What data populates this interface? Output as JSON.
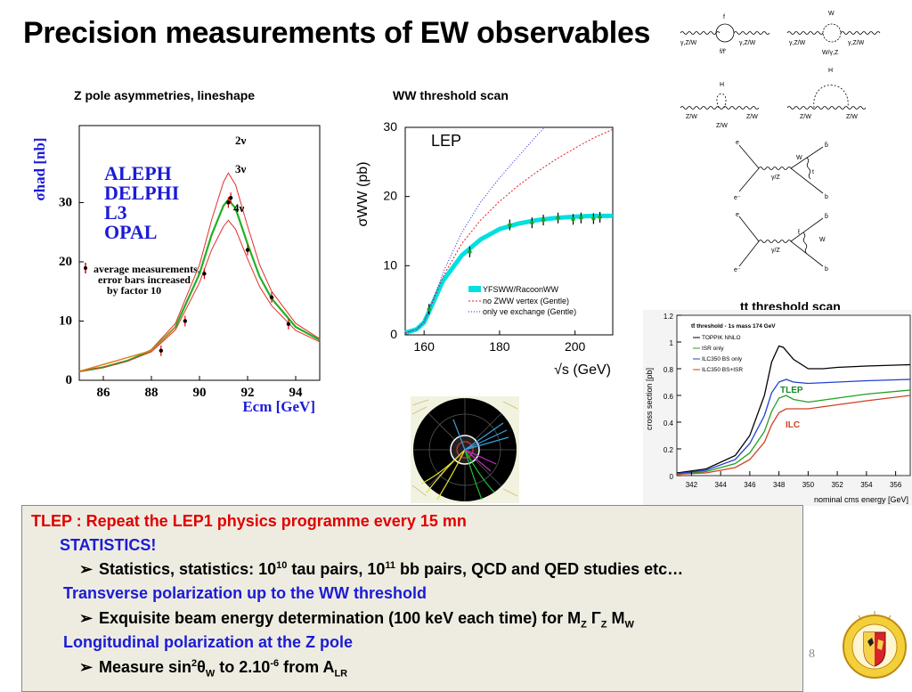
{
  "slide": {
    "title": "Precision measurements of EW observables",
    "page_number": "8"
  },
  "captions": {
    "zpole": "Z pole asymmetries, lineshape",
    "ww": "WW threshold scan",
    "tt": "tt threshold scan"
  },
  "zpole_plot": {
    "ylabel": "σhad [nb]",
    "xlabel": "Ecm [GeV]",
    "experiments": [
      "ALEPH",
      "DELPHI",
      "L3",
      "OPAL"
    ],
    "legend_lines": [
      "average measurements,",
      "error bars increased",
      "by factor 10"
    ],
    "curve_labels": [
      "2ν",
      "3ν",
      "4ν"
    ],
    "x_ticks": [
      "86",
      "88",
      "90",
      "92",
      "94"
    ],
    "y_ticks": [
      "0",
      "10",
      "20",
      "30"
    ]
  },
  "ww_plot": {
    "title": "LEP",
    "ylabel": "σWW (pb)",
    "xlabel": "√s (GeV)",
    "legend": [
      "YFSWW/RacoonWW",
      "no ZWW vertex (Gentle)",
      "only νe exchange (Gentle)"
    ],
    "x_ticks": [
      "160",
      "180",
      "200"
    ],
    "y_ticks": [
      "0",
      "10",
      "20",
      "30"
    ]
  },
  "tt_plot": {
    "header": "tt̄ threshold - 1s mass 174 GeV",
    "legend": [
      "TOPPIK NNLO",
      "ISR only",
      "ILC350 BS only",
      "ILC350 BS+ISR"
    ],
    "ylabel": "cross section [pb]",
    "xlabel": "nominal cms energy [GeV]",
    "labels": {
      "tlep": "TLEP",
      "ilc": "ILC"
    },
    "x_ticks": [
      "342",
      "344",
      "346",
      "348",
      "350",
      "352",
      "354",
      "356"
    ],
    "y_ticks": [
      "0",
      "0.2",
      "0.4",
      "0.6",
      "0.8",
      "1",
      "1.2"
    ],
    "colors": {
      "toppik": "#000000",
      "isr": "#22a022",
      "bs": "#2040d0",
      "bsisr": "#d04020"
    }
  },
  "diagrams": {
    "loop1": {
      "left": "γ,Z/W",
      "right": "γ,Z/W",
      "top": "f",
      "bottom": "f/f'"
    },
    "loop2": {
      "left": "γ,Z/W",
      "right": "γ,Z/W",
      "top": "W",
      "bottom": "W/γ,Z"
    },
    "higgs1": {
      "left": "Z/W",
      "right": "Z/W",
      "top": "H",
      "bottom": "Z/W"
    },
    "higgs2": {
      "left": "Z/W",
      "right": "Z/W",
      "top": "H"
    },
    "prod1": {
      "e1": "e",
      "e2": "e⁻",
      "boson": "γ/Z",
      "w": "W",
      "t": "t",
      "b1": "b̄",
      "b2": "b"
    },
    "prod2": {
      "e1": "e",
      "e2": "e⁻",
      "boson": "γ/Z",
      "w": "W",
      "t": "t̄",
      "b1": "b̄",
      "b2": "b"
    }
  },
  "panel": {
    "line1": "TLEP : Repeat the LEP1 physics programme every 15 mn",
    "line2": "STATISTICS!",
    "line3": {
      "a": "Statistics, statistics: 10",
      "a_sup": "10",
      "b": " tau pairs, 10",
      "b_sup": "11",
      "c": " bb pairs, QCD and QED studies etc…"
    },
    "line4": "Transverse polarization up to the WW threshold",
    "line5": {
      "a": "Exquisite beam energy determination (100 keV each time)  for M",
      "sub1": "Z",
      "g": " Γ",
      "sub2": "Z",
      "m": "  M",
      "sub3": "W"
    },
    "line6": "Longitudinal polarization at the Z pole",
    "line7": {
      "a": "Measure sin",
      "sup1": "2",
      "theta": "θ",
      "sub1": "W",
      "b": " to 2.10",
      "sup2": "-6",
      "c": " from A",
      "sub2": "LR"
    }
  },
  "chart_data": [
    {
      "type": "line",
      "title": "",
      "xlabel": "Ecm [GeV]",
      "ylabel": "σhad [nb]",
      "xlim": [
        85,
        95
      ],
      "ylim": [
        0,
        43
      ],
      "measurements": {
        "x": [
          88.4,
          89.4,
          90.2,
          91.2,
          91.3,
          92.0,
          93.0,
          93.7
        ],
        "y": [
          5,
          10,
          18,
          30,
          30.8,
          22,
          14,
          9.5
        ]
      },
      "series": [
        {
          "name": "2ν",
          "color": "#e03030",
          "x": [
            85,
            86,
            87,
            88,
            89,
            90,
            90.5,
            91,
            91.2,
            91.5,
            92,
            92.5,
            93,
            94,
            95
          ],
          "y": [
            1.5,
            2.2,
            3.3,
            5.2,
            9.6,
            19.5,
            27,
            33.5,
            35,
            33,
            26,
            19.5,
            15,
            9.6,
            7
          ]
        },
        {
          "name": "3ν",
          "color": "#22b022",
          "x": [
            85,
            86,
            87,
            88,
            89,
            90,
            90.5,
            91,
            91.2,
            91.5,
            92,
            92.5,
            93,
            94,
            95
          ],
          "y": [
            1.5,
            2.2,
            3.3,
            5,
            9,
            18,
            24.5,
            29.5,
            30.5,
            29,
            23,
            17.5,
            13.8,
            9,
            6.8
          ]
        },
        {
          "name": "4ν",
          "color": "#e03030",
          "x": [
            85,
            86,
            87,
            88,
            89,
            90,
            90.5,
            91,
            91.2,
            91.5,
            92,
            92.5,
            93,
            94,
            95
          ],
          "y": [
            1.5,
            2.2,
            3.2,
            4.8,
            8.5,
            16.5,
            22,
            26,
            27,
            25.5,
            20.5,
            15.8,
            12.6,
            8.4,
            6.5
          ]
        }
      ]
    },
    {
      "type": "line",
      "title": "LEP",
      "xlabel": "√s (GeV)",
      "ylabel": "σWW (pb)",
      "xlim": [
        155,
        210
      ],
      "ylim": [
        0,
        30
      ],
      "measurements": {
        "x": [
          161.3,
          172.1,
          182.7,
          188.6,
          191.6,
          195.5,
          199.5,
          201.6,
          204.9,
          206.6
        ],
        "y": [
          3.7,
          12.0,
          15.9,
          16.2,
          16.6,
          16.9,
          16.7,
          16.9,
          16.8,
          17.0
        ]
      },
      "series": [
        {
          "name": "YFSWW/RacoonWW",
          "color": "#00e0e0",
          "x": [
            155,
            158,
            160,
            162,
            165,
            170,
            175,
            180,
            185,
            190,
            195,
            200,
            205,
            210
          ],
          "y": [
            0.3,
            0.8,
            1.8,
            4.2,
            7.8,
            11.5,
            13.8,
            15.3,
            16.1,
            16.6,
            16.9,
            17.1,
            17.2,
            17.2
          ]
        },
        {
          "name": "no ZWW vertex (Gentle)",
          "color": "#e02020",
          "x": [
            155,
            158,
            160,
            162,
            165,
            170,
            175,
            180,
            185,
            190,
            195,
            200,
            205,
            210
          ],
          "y": [
            0.3,
            0.8,
            1.8,
            4.4,
            8.4,
            13.2,
            16.6,
            19.3,
            21.6,
            23.6,
            25.4,
            27,
            28.5,
            29.7
          ]
        },
        {
          "name": "only νe exchange (Gentle)",
          "color": "#2020e0",
          "x": [
            155,
            158,
            160,
            162,
            165,
            170,
            175,
            180,
            185,
            190,
            192
          ],
          "y": [
            0.3,
            0.8,
            1.9,
            4.6,
            9,
            14.8,
            19.2,
            22.7,
            25.8,
            28.9,
            30
          ]
        }
      ]
    },
    {
      "type": "line",
      "title": "tt̄ threshold - 1s mass 174 GeV",
      "xlabel": "nominal cms energy [GeV]",
      "ylabel": "cross section [pb]",
      "xlim": [
        341,
        357
      ],
      "ylim": [
        0,
        1.2
      ],
      "series": [
        {
          "name": "TOPPIK NNLO",
          "color": "#000000",
          "x": [
            341,
            343,
            345,
            346,
            347,
            347.5,
            348,
            348.3,
            349,
            350,
            351,
            352,
            354,
            357
          ],
          "y": [
            0.02,
            0.05,
            0.15,
            0.3,
            0.6,
            0.85,
            0.97,
            0.96,
            0.87,
            0.8,
            0.8,
            0.81,
            0.82,
            0.83
          ]
        },
        {
          "name": "ISR only",
          "color": "#22a022",
          "x": [
            341,
            343,
            345,
            346,
            347,
            347.5,
            348,
            348.5,
            349,
            350,
            352,
            354,
            357
          ],
          "y": [
            0.01,
            0.03,
            0.09,
            0.17,
            0.33,
            0.48,
            0.58,
            0.6,
            0.57,
            0.55,
            0.58,
            0.61,
            0.64
          ]
        },
        {
          "name": "ILC350 BS only",
          "color": "#2040d0",
          "x": [
            341,
            343,
            345,
            346,
            347,
            347.5,
            348,
            348.5,
            349,
            350,
            352,
            354,
            357
          ],
          "y": [
            0.015,
            0.04,
            0.12,
            0.24,
            0.45,
            0.62,
            0.7,
            0.72,
            0.7,
            0.69,
            0.7,
            0.71,
            0.72
          ]
        },
        {
          "name": "ILC350 BS+ISR",
          "color": "#d04020",
          "x": [
            341,
            343,
            345,
            346,
            347,
            347.5,
            348,
            348.5,
            349,
            350,
            352,
            354,
            357
          ],
          "y": [
            0.01,
            0.02,
            0.06,
            0.12,
            0.25,
            0.38,
            0.47,
            0.5,
            0.5,
            0.5,
            0.53,
            0.56,
            0.6
          ]
        }
      ]
    }
  ]
}
